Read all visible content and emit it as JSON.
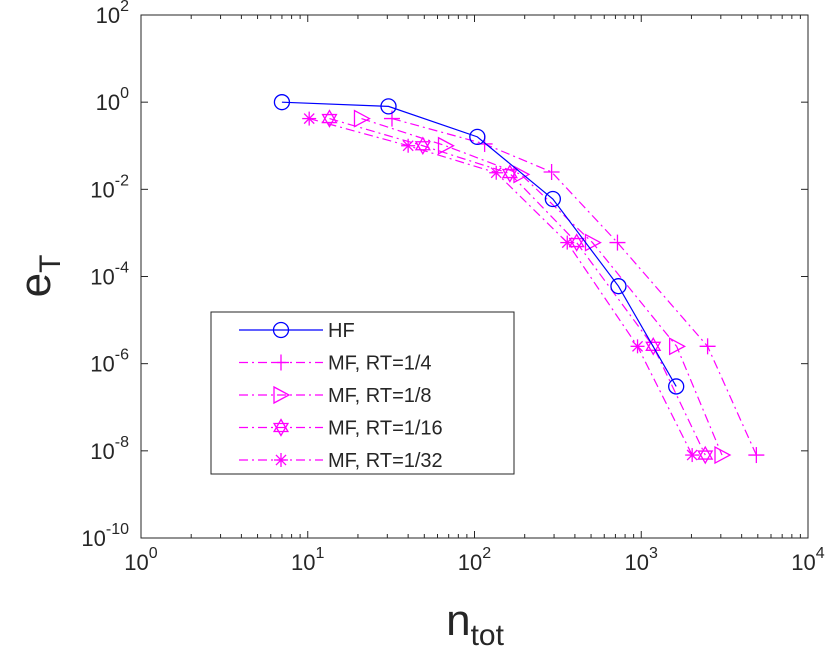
{
  "chart_data": {
    "type": "line",
    "xscale": "log",
    "yscale": "log",
    "xlim": [
      1,
      10000
    ],
    "ylim": [
      1e-10,
      100
    ],
    "xlabel": "n",
    "xlabel_subscript": "tot",
    "ylabel": "e",
    "ylabel_subscript": "T",
    "xticks": [
      {
        "value": 1,
        "base": "10",
        "exp": "0"
      },
      {
        "value": 10,
        "base": "10",
        "exp": "1"
      },
      {
        "value": 100,
        "base": "10",
        "exp": "2"
      },
      {
        "value": 1000,
        "base": "10",
        "exp": "3"
      },
      {
        "value": 10000,
        "base": "10",
        "exp": "4"
      }
    ],
    "yticks": [
      {
        "value": 1e-10,
        "base": "10",
        "exp": "-10"
      },
      {
        "value": 1e-08,
        "base": "10",
        "exp": "-8"
      },
      {
        "value": 1e-06,
        "base": "10",
        "exp": "-6"
      },
      {
        "value": 0.0001,
        "base": "10",
        "exp": "-4"
      },
      {
        "value": 0.01,
        "base": "10",
        "exp": "-2"
      },
      {
        "value": 1,
        "base": "10",
        "exp": "0"
      },
      {
        "value": 100,
        "base": "10",
        "exp": "2"
      }
    ],
    "legend_position": "lower-left",
    "series": [
      {
        "name": "HF",
        "color": "#0000ff",
        "line": "solid",
        "marker": "circle",
        "x": [
          7,
          30.5,
          104,
          295,
          730,
          1620
        ],
        "y": [
          1.0,
          0.8,
          0.16,
          0.006,
          6e-05,
          3e-07
        ]
      },
      {
        "name": "MF, RT=1/4",
        "color": "#ff00ff",
        "line": "dashdot",
        "marker": "plus",
        "x": [
          32,
          115,
          290,
          720,
          2500,
          4900
        ],
        "y": [
          0.42,
          0.11,
          0.025,
          0.0006,
          2.5e-06,
          8e-09
        ]
      },
      {
        "name": "MF, RT=1/8",
        "color": "#ff00ff",
        "line": "dashdot",
        "marker": "triangle-right",
        "x": [
          21,
          67,
          190,
          510,
          1630,
          3050
        ],
        "y": [
          0.42,
          0.1,
          0.022,
          0.0006,
          2.5e-06,
          8e-09
        ]
      },
      {
        "name": "MF, RT=1/16",
        "color": "#ff00ff",
        "line": "dashdot",
        "marker": "hexagram",
        "x": [
          13.5,
          49,
          163,
          410,
          1180,
          2420
        ],
        "y": [
          0.42,
          0.1,
          0.023,
          0.0006,
          2.5e-06,
          8e-09
        ]
      },
      {
        "name": "MF, RT=1/32",
        "color": "#ff00ff",
        "line": "dashdot",
        "marker": "asterisk",
        "x": [
          10.2,
          40,
          135,
          360,
          950,
          2020
        ],
        "y": [
          0.42,
          0.1,
          0.024,
          0.0006,
          2.5e-06,
          8e-09
        ]
      }
    ]
  }
}
